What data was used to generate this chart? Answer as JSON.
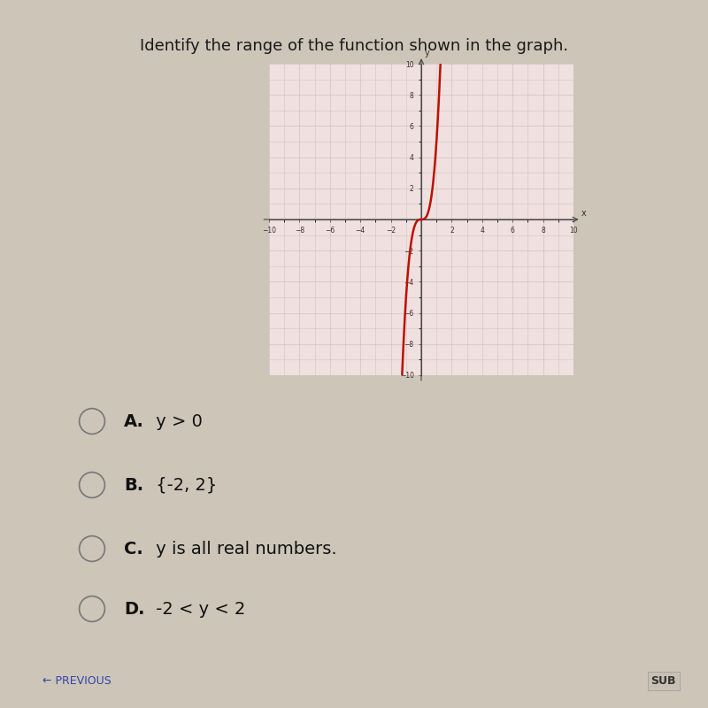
{
  "title": "Identify the range of the function shown in the graph.",
  "title_fontsize": 13,
  "title_color": "#1a1a1a",
  "background_color": "#ccc5b8",
  "graph_bg_color": "#f0e0e0",
  "graph_border_color": "#999999",
  "curve_color": "#bb1100",
  "curve_linewidth": 1.8,
  "grid_color": "#c0a8a8",
  "grid_alpha": 0.7,
  "choices": [
    {
      "label": "A.",
      "text": " y > 0"
    },
    {
      "label": "B.",
      "text": " {-2, 2}"
    },
    {
      "label": "C.",
      "text": " y is all real numbers."
    },
    {
      "label": "D.",
      "text": " -2 < y < 2"
    }
  ],
  "choice_fontsize": 14,
  "choice_color": "#111111",
  "bottom_text": "← PREVIOUS",
  "sub_button": "SUB",
  "graph_xlim": [
    -10,
    10
  ],
  "graph_ylim": [
    -10,
    10
  ]
}
